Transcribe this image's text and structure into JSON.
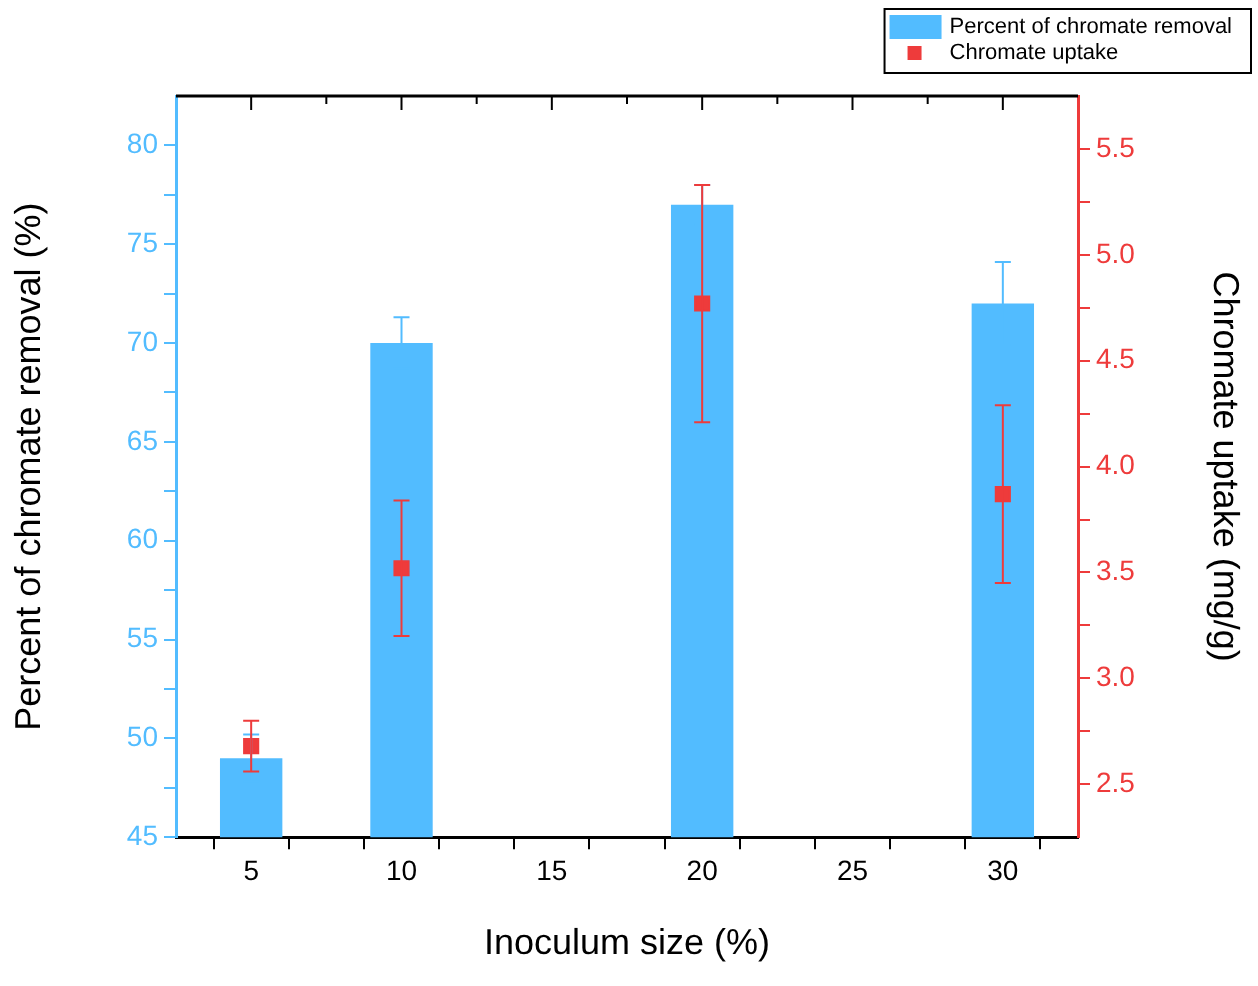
{
  "chart_data": {
    "type": "bar",
    "xlabel": "Inoculum size (%)",
    "ylabel": "Percent of chromate removal (%)",
    "y2label": "Chromate uptake (mg/g)",
    "x": [
      5,
      10,
      20,
      30
    ],
    "xlim": [
      2.5,
      32.5
    ],
    "xticks": [
      5,
      {
        "value": 7.5,
        "label": null
      },
      10,
      {
        "value": 12.5,
        "label": null
      },
      15,
      {
        "value": 17.5,
        "label": null
      },
      20,
      {
        "value": 22.5,
        "label": null
      },
      25,
      {
        "value": 27.5,
        "label": null
      },
      30
    ],
    "ylim": [
      45,
      82.5
    ],
    "yticks": [
      45,
      {
        "value": 47.5,
        "label": null
      },
      50,
      {
        "value": 52.5,
        "label": null
      },
      55,
      {
        "value": 57.5,
        "label": null
      },
      60,
      {
        "value": 62.5,
        "label": null
      },
      65,
      {
        "value": 67.5,
        "label": null
      },
      70,
      {
        "value": 72.5,
        "label": null
      },
      75,
      {
        "value": 77.5,
        "label": null
      },
      80
    ],
    "y2lim": [
      2.25,
      5.75
    ],
    "y2ticks": [
      {
        "value": 2.5,
        "label": "2.5"
      },
      {
        "value": 2.75,
        "label": null
      },
      {
        "value": 3,
        "label": "3.0"
      },
      {
        "value": 3.25,
        "label": null
      },
      {
        "value": 3.5,
        "label": "3.5"
      },
      {
        "value": 3.75,
        "label": null
      },
      {
        "value": 4,
        "label": "4.0"
      },
      {
        "value": 4.25,
        "label": null
      },
      {
        "value": 4.5,
        "label": "4.5"
      },
      {
        "value": 4.75,
        "label": null
      },
      {
        "value": 5,
        "label": "5.0"
      },
      {
        "value": 5.25,
        "label": null
      },
      {
        "value": 5.5,
        "label": "5.5"
      }
    ],
    "series": [
      {
        "name": "Percent of chromate removal",
        "color": "#52bcff",
        "values": [
          49,
          70,
          77,
          72
        ],
        "errors": [
          1.2,
          1.3,
          1.0,
          2.1
        ]
      },
      {
        "name": "Chromate uptake",
        "type": "scatter",
        "axis": "y2",
        "color": "#ee3b3b",
        "values": [
          2.68,
          3.52,
          4.77,
          3.87
        ],
        "errors": [
          0.12,
          0.32,
          0.56,
          0.42
        ]
      }
    ],
    "marker": "square",
    "legend": "top right",
    "grid": false
  }
}
